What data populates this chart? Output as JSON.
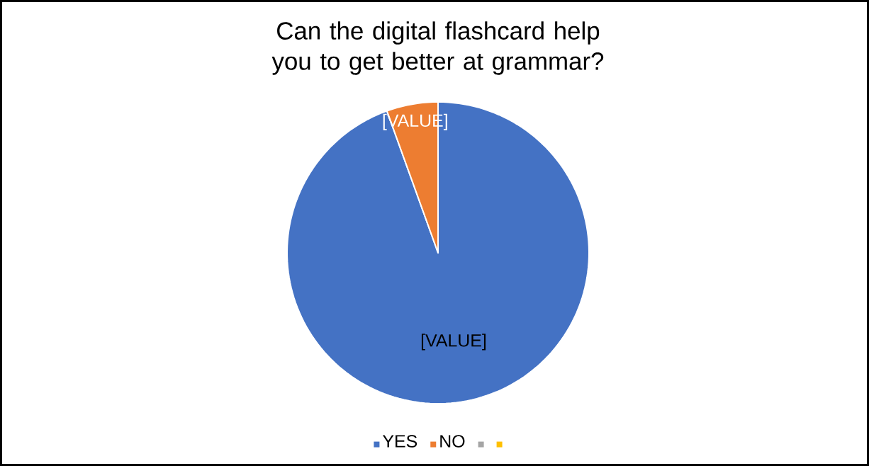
{
  "chart_data": {
    "type": "pie",
    "title": "Can the digital flashcard help you to get better at grammar?",
    "categories": [
      "YES",
      "NO",
      null,
      null
    ],
    "values": [
      94.5,
      5.5,
      0,
      0
    ],
    "colors": [
      "#4472c4",
      "#ed7d31",
      "#a5a5a5",
      "#ffc000"
    ],
    "value_labels": [
      "[VALUE]",
      "[VALUE]",
      null,
      null
    ],
    "legend": "bottom"
  }
}
